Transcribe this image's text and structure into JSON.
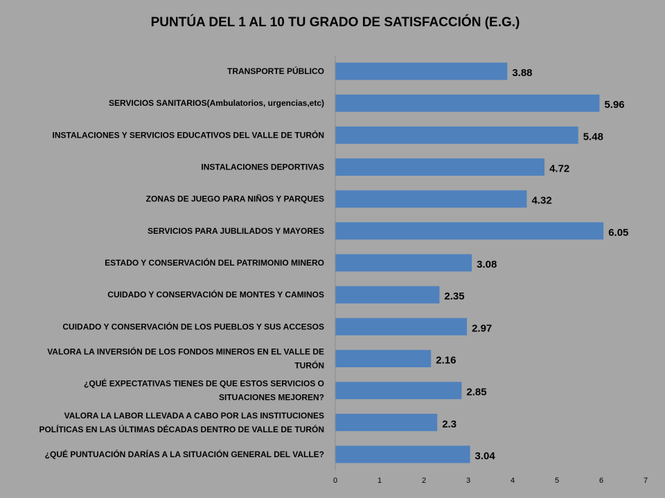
{
  "chart_data": {
    "type": "bar",
    "orientation": "horizontal",
    "title": "PUNTÚA DEL 1 AL 10 TU GRADO DE SATISFACCIÓN (E.G.)",
    "categories": [
      [
        "TRANSPORTE PÚBLICO"
      ],
      [
        "SERVICIOS SANITARIOS(Ambulatorios, urgencias,etc)"
      ],
      [
        "INSTALACIONES Y SERVICIOS EDUCATIVOS DEL VALLE DE TURÓN"
      ],
      [
        "INSTALACIONES DEPORTIVAS"
      ],
      [
        "ZONAS DE JUEGO PARA NIÑOS Y PARQUES"
      ],
      [
        "SERVICIOS PARA JUBLILADOS Y MAYORES"
      ],
      [
        "ESTADO Y CONSERVACIÓN DEL PATRIMONIO MINERO"
      ],
      [
        "CUIDADO Y CONSERVACIÓN DE MONTES Y CAMINOS"
      ],
      [
        "CUIDADO Y CONSERVACIÓN DE LOS PUEBLOS Y SUS ACCESOS"
      ],
      [
        "VALORA LA INVERSIÓN DE LOS FONDOS MINEROS EN EL VALLE DE",
        "TURÓN"
      ],
      [
        "¿QUÉ EXPECTATIVAS TIENES DE QUE ESTOS SERVICIOS O",
        "SITUACIONES MEJOREN?"
      ],
      [
        "VALORA LA LABOR LLEVADA A CABO POR LAS INSTITUCIONES",
        "POLÍTICAS EN LAS ÚLTIMAS DÉCADAS DENTRO DE VALLE DE TURÓN"
      ],
      [
        "¿QUÉ PUNTUACIÓN DARÍAS A LA SITUACIÓN GENERAL DEL VALLE?"
      ]
    ],
    "values": [
      3.88,
      5.96,
      5.48,
      4.72,
      4.32,
      6.05,
      3.08,
      2.35,
      2.97,
      2.16,
      2.85,
      2.3,
      3.04
    ],
    "xlim": [
      0,
      7
    ],
    "xticks": [
      0,
      1,
      2,
      3,
      4,
      5,
      6,
      7
    ],
    "grid": false,
    "legend": "none",
    "bar_color": "#4f81bd",
    "background_color": "#a6a6a6"
  }
}
